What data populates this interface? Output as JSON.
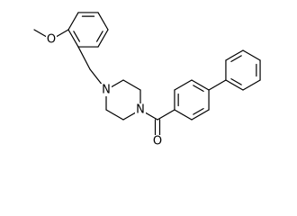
{
  "atoms": [
    {
      "label": "O"
    },
    {
      "label": "N"
    },
    {
      "label": "N"
    },
    {
      "label": "O"
    }
  ]
}
